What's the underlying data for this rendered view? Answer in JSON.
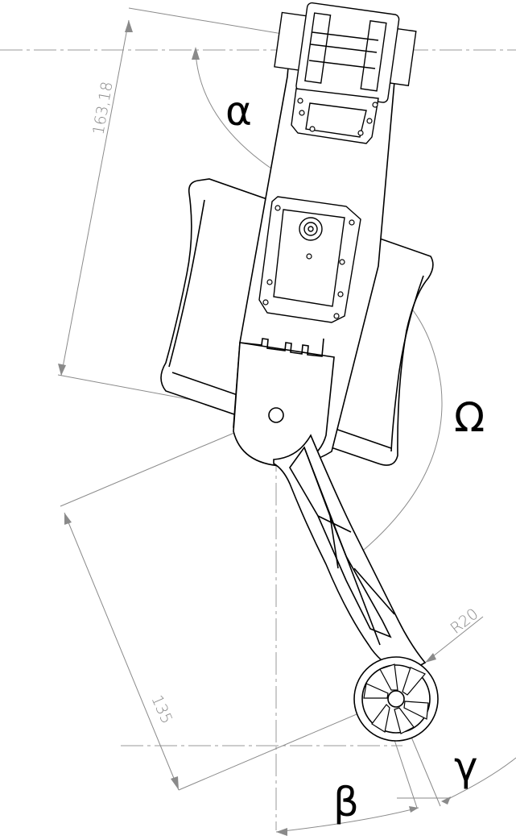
{
  "dimensions": {
    "upper_length": "163,18",
    "lower_length": "135",
    "foot_radius": "R20"
  },
  "angles": {
    "alpha": "α",
    "omega": "Ω",
    "beta": "β",
    "gamma": "γ"
  },
  "colors": {
    "line": "#000000",
    "dimension": "#8a8a8a",
    "background": "#ffffff"
  }
}
